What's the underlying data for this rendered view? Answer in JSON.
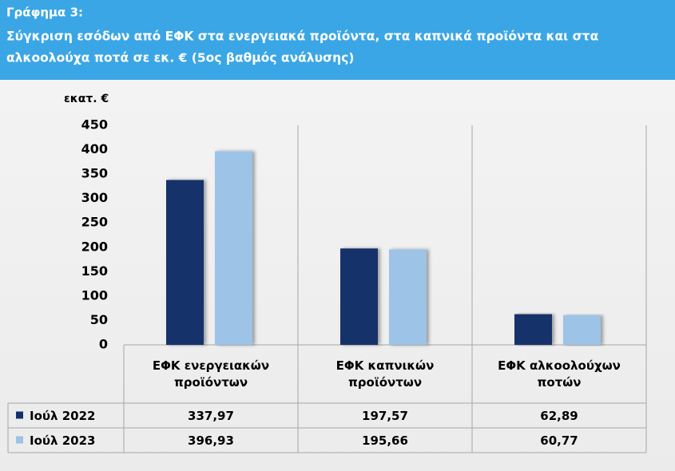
{
  "chart_data": {
    "type": "bar",
    "title": "Γράφημα 3:",
    "subtitle_lines": [
      "Σύγκριση εσόδων από ΕΦΚ στα ενεργειακά προϊόντα, στα καπνικά προϊόντα και στα",
      "αλκοολούχα ποτά σε εκ. €  (5ος βαθμός ανάλυσης)"
    ],
    "y_label": "εκατ. €",
    "categories": [
      "ΕΦΚ ενεργειακών προϊόντων",
      "ΕΦΚ καπνικών προϊόντων",
      "ΕΦΚ αλκοολούχων ποτών"
    ],
    "series": [
      {
        "name": "Ιούλ 2022",
        "color": "#14306b",
        "values": [
          337.97,
          197.57,
          62.89
        ],
        "value_labels": [
          "337,97",
          "197,57",
          "62,89"
        ]
      },
      {
        "name": "Ιούλ 2023",
        "color": "#9dc3e6",
        "values": [
          396.93,
          195.66,
          60.77
        ],
        "value_labels": [
          "396,93",
          "195,66",
          "60,77"
        ]
      }
    ],
    "ylim": [
      0,
      450
    ],
    "yticks": [
      0,
      50,
      100,
      150,
      200,
      250,
      300,
      350,
      400,
      450
    ]
  }
}
